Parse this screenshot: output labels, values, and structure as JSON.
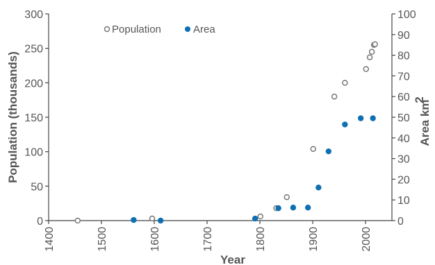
{
  "chart_data": {
    "type": "scatter",
    "title": "",
    "xlabel": "Year",
    "ylabel_left": "Population (thousands)",
    "ylabel_right": "Area km",
    "ylabel_right_superscript": "2",
    "xlim": [
      1400,
      2050
    ],
    "ylim_left": [
      0,
      300
    ],
    "ylim_right": [
      0,
      100
    ],
    "x_ticks": [
      1400,
      1500,
      1600,
      1700,
      1800,
      1900,
      2000
    ],
    "y_ticks_left": [
      0,
      50,
      100,
      150,
      200,
      250,
      300
    ],
    "y_ticks_right": [
      0,
      10,
      20,
      30,
      40,
      50,
      60,
      70,
      80,
      90,
      100
    ],
    "grid": false,
    "legend_position": "top-left",
    "series": [
      {
        "name": "Population",
        "axis": "left",
        "marker": "open-circle",
        "color": "#777777",
        "points": [
          [
            1455,
            0
          ],
          [
            1596,
            3
          ],
          [
            1801,
            6
          ],
          [
            1831,
            18
          ],
          [
            1851,
            34
          ],
          [
            1901,
            104
          ],
          [
            1941,
            180
          ],
          [
            1961,
            200
          ],
          [
            2001,
            220
          ],
          [
            2008,
            237
          ],
          [
            2012,
            245
          ],
          [
            2016,
            255
          ],
          [
            2018,
            256
          ]
        ]
      },
      {
        "name": "Area",
        "axis": "right",
        "marker": "filled-circle",
        "color": "#0e6fb2",
        "points": [
          [
            1561,
            0.3
          ],
          [
            1612,
            0
          ],
          [
            1791,
            1
          ],
          [
            1835,
            6
          ],
          [
            1863,
            6.3
          ],
          [
            1891,
            6.3
          ],
          [
            1911,
            16
          ],
          [
            1930,
            33.5
          ],
          [
            1961,
            46.5
          ],
          [
            1991,
            49.5
          ],
          [
            2014,
            49.5
          ]
        ]
      }
    ]
  }
}
